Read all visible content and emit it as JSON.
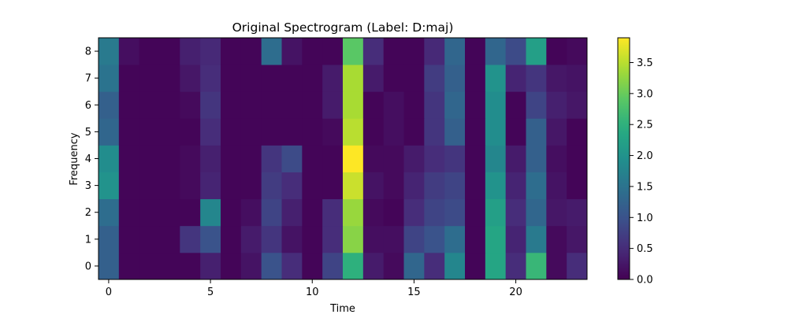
{
  "chart_data": {
    "type": "heatmap",
    "title": "Original Spectrogram (Label: D:maj)",
    "xlabel": "Time",
    "ylabel": "Frequency",
    "x_range": [
      -0.5,
      23.5
    ],
    "y_range": [
      -0.5,
      8.5
    ],
    "x_ticks": [
      0,
      5,
      10,
      15,
      20
    ],
    "y_ticks": [
      0,
      1,
      2,
      3,
      4,
      5,
      6,
      7,
      8
    ],
    "colormap": "viridis",
    "colorbar": {
      "vmin": 0.0,
      "vmax": 3.9,
      "ticks": [
        0.0,
        0.5,
        1.0,
        1.5,
        2.0,
        2.5,
        3.0,
        3.5
      ],
      "tick_labels": [
        "0.0",
        "0.5",
        "1.0",
        "1.5",
        "2.0",
        "2.5",
        "3.0",
        "3.5"
      ]
    },
    "rows_by_frequency": [
      [
        1.2,
        0.05,
        0.05,
        0.05,
        0.05,
        0.35,
        0.05,
        0.2,
        1.0,
        0.5,
        0.05,
        0.8,
        2.5,
        0.3,
        0.1,
        1.3,
        0.5,
        1.8,
        0.05,
        2.3,
        0.5,
        2.6,
        0.1,
        0.5
      ],
      [
        1.2,
        0.05,
        0.05,
        0.05,
        0.6,
        1.0,
        0.05,
        0.3,
        0.6,
        0.2,
        0.05,
        0.5,
        3.2,
        0.15,
        0.15,
        0.8,
        1.0,
        1.4,
        0.05,
        2.3,
        0.4,
        1.6,
        0.1,
        0.25
      ],
      [
        1.4,
        0.05,
        0.05,
        0.05,
        0.05,
        1.8,
        0.05,
        0.15,
        0.8,
        0.35,
        0.05,
        0.5,
        3.3,
        0.1,
        0.05,
        0.5,
        0.8,
        0.9,
        0.05,
        2.2,
        0.5,
        1.3,
        0.25,
        0.3
      ],
      [
        2.0,
        0.05,
        0.05,
        0.05,
        0.1,
        0.4,
        0.05,
        0.05,
        0.7,
        0.5,
        0.05,
        0.05,
        3.6,
        0.2,
        0.1,
        0.4,
        0.7,
        0.8,
        0.05,
        2.0,
        0.4,
        1.4,
        0.2,
        0.05
      ],
      [
        1.9,
        0.05,
        0.05,
        0.05,
        0.1,
        0.35,
        0.05,
        0.05,
        0.6,
        0.9,
        0.05,
        0.05,
        3.9,
        0.1,
        0.1,
        0.3,
        0.5,
        0.6,
        0.05,
        1.8,
        0.3,
        1.2,
        0.15,
        0.05
      ],
      [
        1.3,
        0.05,
        0.05,
        0.05,
        0.05,
        0.5,
        0.05,
        0.05,
        0.05,
        0.05,
        0.05,
        0.1,
        3.5,
        0.05,
        0.15,
        0.05,
        0.6,
        1.2,
        0.05,
        1.9,
        0.05,
        1.2,
        0.25,
        0.05
      ],
      [
        1.2,
        0.05,
        0.05,
        0.05,
        0.1,
        0.6,
        0.05,
        0.05,
        0.05,
        0.05,
        0.05,
        0.3,
        3.4,
        0.05,
        0.15,
        0.05,
        0.6,
        1.3,
        0.05,
        1.9,
        0.05,
        0.8,
        0.35,
        0.25
      ],
      [
        1.5,
        0.05,
        0.05,
        0.05,
        0.25,
        0.5,
        0.05,
        0.05,
        0.05,
        0.05,
        0.05,
        0.3,
        3.4,
        0.3,
        0.05,
        0.05,
        0.7,
        1.2,
        0.05,
        2.0,
        0.4,
        0.6,
        0.25,
        0.2
      ],
      [
        1.6,
        0.15,
        0.05,
        0.05,
        0.35,
        0.45,
        0.05,
        0.05,
        1.4,
        0.2,
        0.05,
        0.05,
        2.9,
        0.5,
        0.05,
        0.05,
        0.45,
        1.3,
        0.05,
        1.3,
        0.9,
        2.2,
        0.05,
        0.1
      ]
    ]
  }
}
